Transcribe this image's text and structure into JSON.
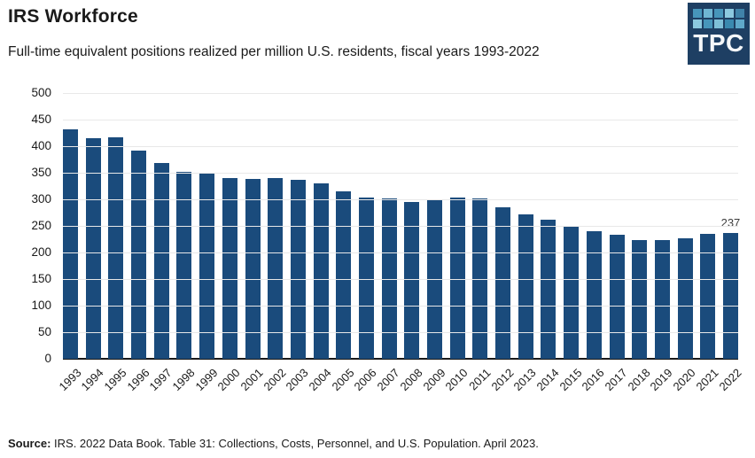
{
  "header": {
    "title": "IRS Workforce",
    "subtitle": "Full-time equivalent positions realized per million U.S. residents, fiscal years 1993-2022"
  },
  "logo": {
    "text": "TPC",
    "background": "#1E3F63",
    "square_colors": [
      "#4796BB",
      "#6FB6D3",
      "#4796BB",
      "#8CC9DF",
      "#4083A9",
      "#8CC9DF",
      "#4796BB",
      "#7FC0D8",
      "#3A89AF",
      "#5FA8C9"
    ]
  },
  "chart_data": {
    "type": "bar",
    "title": "IRS Workforce",
    "subtitle": "Full-time equivalent positions realized per million U.S. residents, fiscal years 1993-2022",
    "categories": [
      "1993",
      "1994",
      "1995",
      "1996",
      "1997",
      "1998",
      "1999",
      "2000",
      "2001",
      "2002",
      "2003",
      "2004",
      "2005",
      "2006",
      "2007",
      "2008",
      "2009",
      "2010",
      "2011",
      "2012",
      "2013",
      "2014",
      "2015",
      "2016",
      "2017",
      "2018",
      "2019",
      "2020",
      "2021",
      "2022"
    ],
    "values": [
      431,
      415,
      416,
      392,
      369,
      352,
      350,
      340,
      338,
      340,
      336,
      330,
      315,
      304,
      302,
      295,
      298,
      304,
      302,
      285,
      272,
      261,
      249,
      240,
      234,
      223,
      223,
      227,
      235,
      237
    ],
    "bar_color": "#1A4B7C",
    "grid": true,
    "grid_color": "#e8e8e8",
    "ylim": [
      0,
      500
    ],
    "yticks": [
      0,
      50,
      100,
      150,
      200,
      250,
      300,
      350,
      400,
      450,
      500
    ],
    "xlabel": "",
    "ylabel": "",
    "last_value_label": "237",
    "legend": "none"
  },
  "source": {
    "prefix": "Source:",
    "text": " IRS. 2022 Data Book. Table 31: Collections, Costs, Personnel, and U.S. Population. April 2023."
  }
}
